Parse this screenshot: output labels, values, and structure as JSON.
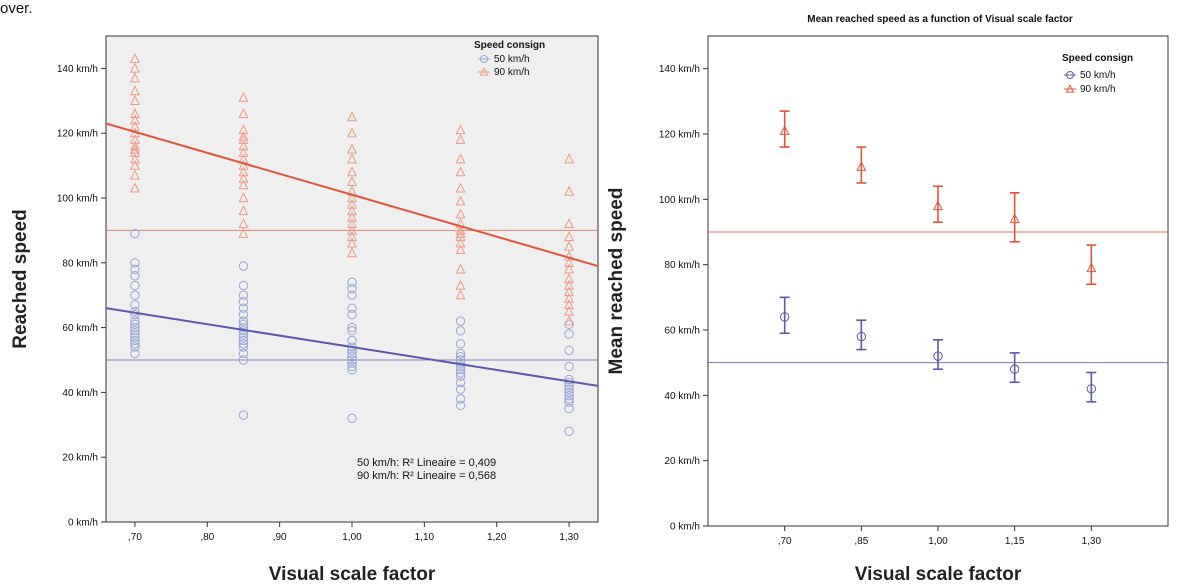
{
  "page_fragment": "over.",
  "series_colors": {
    "kmh50": "#5a5aaa",
    "kmh90": "#e0553a"
  },
  "chart_data": [
    {
      "type": "scatter",
      "title": "",
      "xlabel": "Visual scale factor",
      "ylabel": "Reached speed",
      "x_ticks": [
        0.7,
        0.8,
        0.9,
        1.0,
        1.1,
        1.2,
        1.3
      ],
      "x_tick_labels": [
        ",70",
        ",80",
        ",90",
        "1,00",
        "1,10",
        "1,20",
        "1,30"
      ],
      "xlim": [
        0.66,
        1.34
      ],
      "y_ticks": [
        0,
        20,
        40,
        60,
        80,
        100,
        120,
        140
      ],
      "y_tick_labels": [
        "0 km/h",
        "20 km/h",
        "40 km/h",
        "60 km/h",
        "80 km/h",
        "100 km/h",
        "120 km/h",
        "140 km/h"
      ],
      "ylim": [
        0,
        150
      ],
      "grid": false,
      "legend_position": "top-right",
      "legend_title": "Speed consign",
      "reference_lines": [
        50,
        90
      ],
      "fit_labels": [
        "50 km/h: R² Lineaire = 0,409",
        "90 km/h: R² Lineaire = 0,568"
      ],
      "series": [
        {
          "name": "50 km/h",
          "marker": "circle",
          "fit": {
            "x": [
              0.66,
              1.34
            ],
            "y": [
              66,
              42
            ]
          },
          "points": [
            {
              "x": 0.7,
              "y": 52
            },
            {
              "x": 0.7,
              "y": 54
            },
            {
              "x": 0.7,
              "y": 55
            },
            {
              "x": 0.7,
              "y": 56
            },
            {
              "x": 0.7,
              "y": 57
            },
            {
              "x": 0.7,
              "y": 58
            },
            {
              "x": 0.7,
              "y": 59
            },
            {
              "x": 0.7,
              "y": 60
            },
            {
              "x": 0.7,
              "y": 61
            },
            {
              "x": 0.7,
              "y": 62
            },
            {
              "x": 0.7,
              "y": 64
            },
            {
              "x": 0.7,
              "y": 65
            },
            {
              "x": 0.7,
              "y": 67
            },
            {
              "x": 0.7,
              "y": 70
            },
            {
              "x": 0.7,
              "y": 73
            },
            {
              "x": 0.7,
              "y": 76
            },
            {
              "x": 0.7,
              "y": 78
            },
            {
              "x": 0.7,
              "y": 80
            },
            {
              "x": 0.7,
              "y": 89
            },
            {
              "x": 0.85,
              "y": 33
            },
            {
              "x": 0.85,
              "y": 50
            },
            {
              "x": 0.85,
              "y": 52
            },
            {
              "x": 0.85,
              "y": 54
            },
            {
              "x": 0.85,
              "y": 55
            },
            {
              "x": 0.85,
              "y": 56
            },
            {
              "x": 0.85,
              "y": 57
            },
            {
              "x": 0.85,
              "y": 58
            },
            {
              "x": 0.85,
              "y": 59
            },
            {
              "x": 0.85,
              "y": 60
            },
            {
              "x": 0.85,
              "y": 61
            },
            {
              "x": 0.85,
              "y": 62
            },
            {
              "x": 0.85,
              "y": 64
            },
            {
              "x": 0.85,
              "y": 66
            },
            {
              "x": 0.85,
              "y": 68
            },
            {
              "x": 0.85,
              "y": 70
            },
            {
              "x": 0.85,
              "y": 73
            },
            {
              "x": 0.85,
              "y": 79
            },
            {
              "x": 1.0,
              "y": 32
            },
            {
              "x": 1.0,
              "y": 47
            },
            {
              "x": 1.0,
              "y": 48
            },
            {
              "x": 1.0,
              "y": 49
            },
            {
              "x": 1.0,
              "y": 50
            },
            {
              "x": 1.0,
              "y": 51
            },
            {
              "x": 1.0,
              "y": 52
            },
            {
              "x": 1.0,
              "y": 53
            },
            {
              "x": 1.0,
              "y": 54
            },
            {
              "x": 1.0,
              "y": 56
            },
            {
              "x": 1.0,
              "y": 59
            },
            {
              "x": 1.0,
              "y": 60
            },
            {
              "x": 1.0,
              "y": 64
            },
            {
              "x": 1.0,
              "y": 66
            },
            {
              "x": 1.0,
              "y": 70
            },
            {
              "x": 1.0,
              "y": 72
            },
            {
              "x": 1.0,
              "y": 74
            },
            {
              "x": 1.15,
              "y": 36
            },
            {
              "x": 1.15,
              "y": 38
            },
            {
              "x": 1.15,
              "y": 41
            },
            {
              "x": 1.15,
              "y": 43
            },
            {
              "x": 1.15,
              "y": 45
            },
            {
              "x": 1.15,
              "y": 46
            },
            {
              "x": 1.15,
              "y": 47
            },
            {
              "x": 1.15,
              "y": 48
            },
            {
              "x": 1.15,
              "y": 49
            },
            {
              "x": 1.15,
              "y": 50
            },
            {
              "x": 1.15,
              "y": 51
            },
            {
              "x": 1.15,
              "y": 52
            },
            {
              "x": 1.15,
              "y": 55
            },
            {
              "x": 1.15,
              "y": 59
            },
            {
              "x": 1.15,
              "y": 62
            },
            {
              "x": 1.3,
              "y": 28
            },
            {
              "x": 1.3,
              "y": 35
            },
            {
              "x": 1.3,
              "y": 37
            },
            {
              "x": 1.3,
              "y": 38
            },
            {
              "x": 1.3,
              "y": 39
            },
            {
              "x": 1.3,
              "y": 40
            },
            {
              "x": 1.3,
              "y": 41
            },
            {
              "x": 1.3,
              "y": 42
            },
            {
              "x": 1.3,
              "y": 43
            },
            {
              "x": 1.3,
              "y": 44
            },
            {
              "x": 1.3,
              "y": 48
            },
            {
              "x": 1.3,
              "y": 53
            },
            {
              "x": 1.3,
              "y": 58
            },
            {
              "x": 1.3,
              "y": 61
            }
          ]
        },
        {
          "name": "90 km/h",
          "marker": "triangle",
          "fit": {
            "x": [
              0.66,
              1.34
            ],
            "y": [
              123,
              79
            ]
          },
          "points": [
            {
              "x": 0.7,
              "y": 103
            },
            {
              "x": 0.7,
              "y": 107
            },
            {
              "x": 0.7,
              "y": 110
            },
            {
              "x": 0.7,
              "y": 112
            },
            {
              "x": 0.7,
              "y": 114
            },
            {
              "x": 0.7,
              "y": 115
            },
            {
              "x": 0.7,
              "y": 116
            },
            {
              "x": 0.7,
              "y": 118
            },
            {
              "x": 0.7,
              "y": 120
            },
            {
              "x": 0.7,
              "y": 122
            },
            {
              "x": 0.7,
              "y": 124
            },
            {
              "x": 0.7,
              "y": 126
            },
            {
              "x": 0.7,
              "y": 130
            },
            {
              "x": 0.7,
              "y": 133
            },
            {
              "x": 0.7,
              "y": 137
            },
            {
              "x": 0.7,
              "y": 140
            },
            {
              "x": 0.7,
              "y": 143
            },
            {
              "x": 0.85,
              "y": 89
            },
            {
              "x": 0.85,
              "y": 92
            },
            {
              "x": 0.85,
              "y": 96
            },
            {
              "x": 0.85,
              "y": 100
            },
            {
              "x": 0.85,
              "y": 104
            },
            {
              "x": 0.85,
              "y": 106
            },
            {
              "x": 0.85,
              "y": 108
            },
            {
              "x": 0.85,
              "y": 110
            },
            {
              "x": 0.85,
              "y": 112
            },
            {
              "x": 0.85,
              "y": 114
            },
            {
              "x": 0.85,
              "y": 116
            },
            {
              "x": 0.85,
              "y": 118
            },
            {
              "x": 0.85,
              "y": 119
            },
            {
              "x": 0.85,
              "y": 121
            },
            {
              "x": 0.85,
              "y": 126
            },
            {
              "x": 0.85,
              "y": 131
            },
            {
              "x": 1.0,
              "y": 83
            },
            {
              "x": 1.0,
              "y": 86
            },
            {
              "x": 1.0,
              "y": 88
            },
            {
              "x": 1.0,
              "y": 90
            },
            {
              "x": 1.0,
              "y": 92
            },
            {
              "x": 1.0,
              "y": 94
            },
            {
              "x": 1.0,
              "y": 96
            },
            {
              "x": 1.0,
              "y": 98
            },
            {
              "x": 1.0,
              "y": 100
            },
            {
              "x": 1.0,
              "y": 102
            },
            {
              "x": 1.0,
              "y": 105
            },
            {
              "x": 1.0,
              "y": 108
            },
            {
              "x": 1.0,
              "y": 112
            },
            {
              "x": 1.0,
              "y": 115
            },
            {
              "x": 1.0,
              "y": 120
            },
            {
              "x": 1.0,
              "y": 125
            },
            {
              "x": 1.15,
              "y": 70
            },
            {
              "x": 1.15,
              "y": 73
            },
            {
              "x": 1.15,
              "y": 78
            },
            {
              "x": 1.15,
              "y": 84
            },
            {
              "x": 1.15,
              "y": 86
            },
            {
              "x": 1.15,
              "y": 88
            },
            {
              "x": 1.15,
              "y": 89
            },
            {
              "x": 1.15,
              "y": 90
            },
            {
              "x": 1.15,
              "y": 92
            },
            {
              "x": 1.15,
              "y": 95
            },
            {
              "x": 1.15,
              "y": 99
            },
            {
              "x": 1.15,
              "y": 103
            },
            {
              "x": 1.15,
              "y": 108
            },
            {
              "x": 1.15,
              "y": 112
            },
            {
              "x": 1.15,
              "y": 118
            },
            {
              "x": 1.15,
              "y": 121
            },
            {
              "x": 1.3,
              "y": 62
            },
            {
              "x": 1.3,
              "y": 65
            },
            {
              "x": 1.3,
              "y": 67
            },
            {
              "x": 1.3,
              "y": 69
            },
            {
              "x": 1.3,
              "y": 71
            },
            {
              "x": 1.3,
              "y": 73
            },
            {
              "x": 1.3,
              "y": 75
            },
            {
              "x": 1.3,
              "y": 78
            },
            {
              "x": 1.3,
              "y": 80
            },
            {
              "x": 1.3,
              "y": 82
            },
            {
              "x": 1.3,
              "y": 85
            },
            {
              "x": 1.3,
              "y": 88
            },
            {
              "x": 1.3,
              "y": 92
            },
            {
              "x": 1.3,
              "y": 102
            },
            {
              "x": 1.3,
              "y": 112
            }
          ]
        }
      ]
    },
    {
      "type": "errorbar",
      "title": "Mean reached speed as a function of Visual scale factor",
      "xlabel": "Visual scale factor",
      "ylabel": "Mean reached speed",
      "categories": [
        ",70",
        ",85",
        "1,00",
        "1,15",
        "1,30"
      ],
      "y_ticks": [
        0,
        20,
        40,
        60,
        80,
        100,
        120,
        140
      ],
      "y_tick_labels": [
        "0 km/h",
        "20 km/h",
        "40 km/h",
        "60 km/h",
        "80 km/h",
        "100 km/h",
        "120 km/h",
        "140 km/h"
      ],
      "ylim": [
        0,
        150
      ],
      "grid": false,
      "legend_position": "top-right",
      "legend_title": "Speed consign",
      "reference_lines": [
        50,
        90
      ],
      "series": [
        {
          "name": "50 km/h",
          "marker": "circle",
          "mean": [
            64,
            58,
            52,
            48,
            42
          ],
          "low": [
            59,
            54,
            48,
            44,
            38
          ],
          "high": [
            70,
            63,
            57,
            53,
            47
          ]
        },
        {
          "name": "90 km/h",
          "marker": "triangle",
          "mean": [
            121,
            110,
            98,
            94,
            79
          ],
          "low": [
            116,
            105,
            93,
            87,
            74
          ],
          "high": [
            127,
            116,
            104,
            102,
            86
          ]
        }
      ]
    }
  ]
}
